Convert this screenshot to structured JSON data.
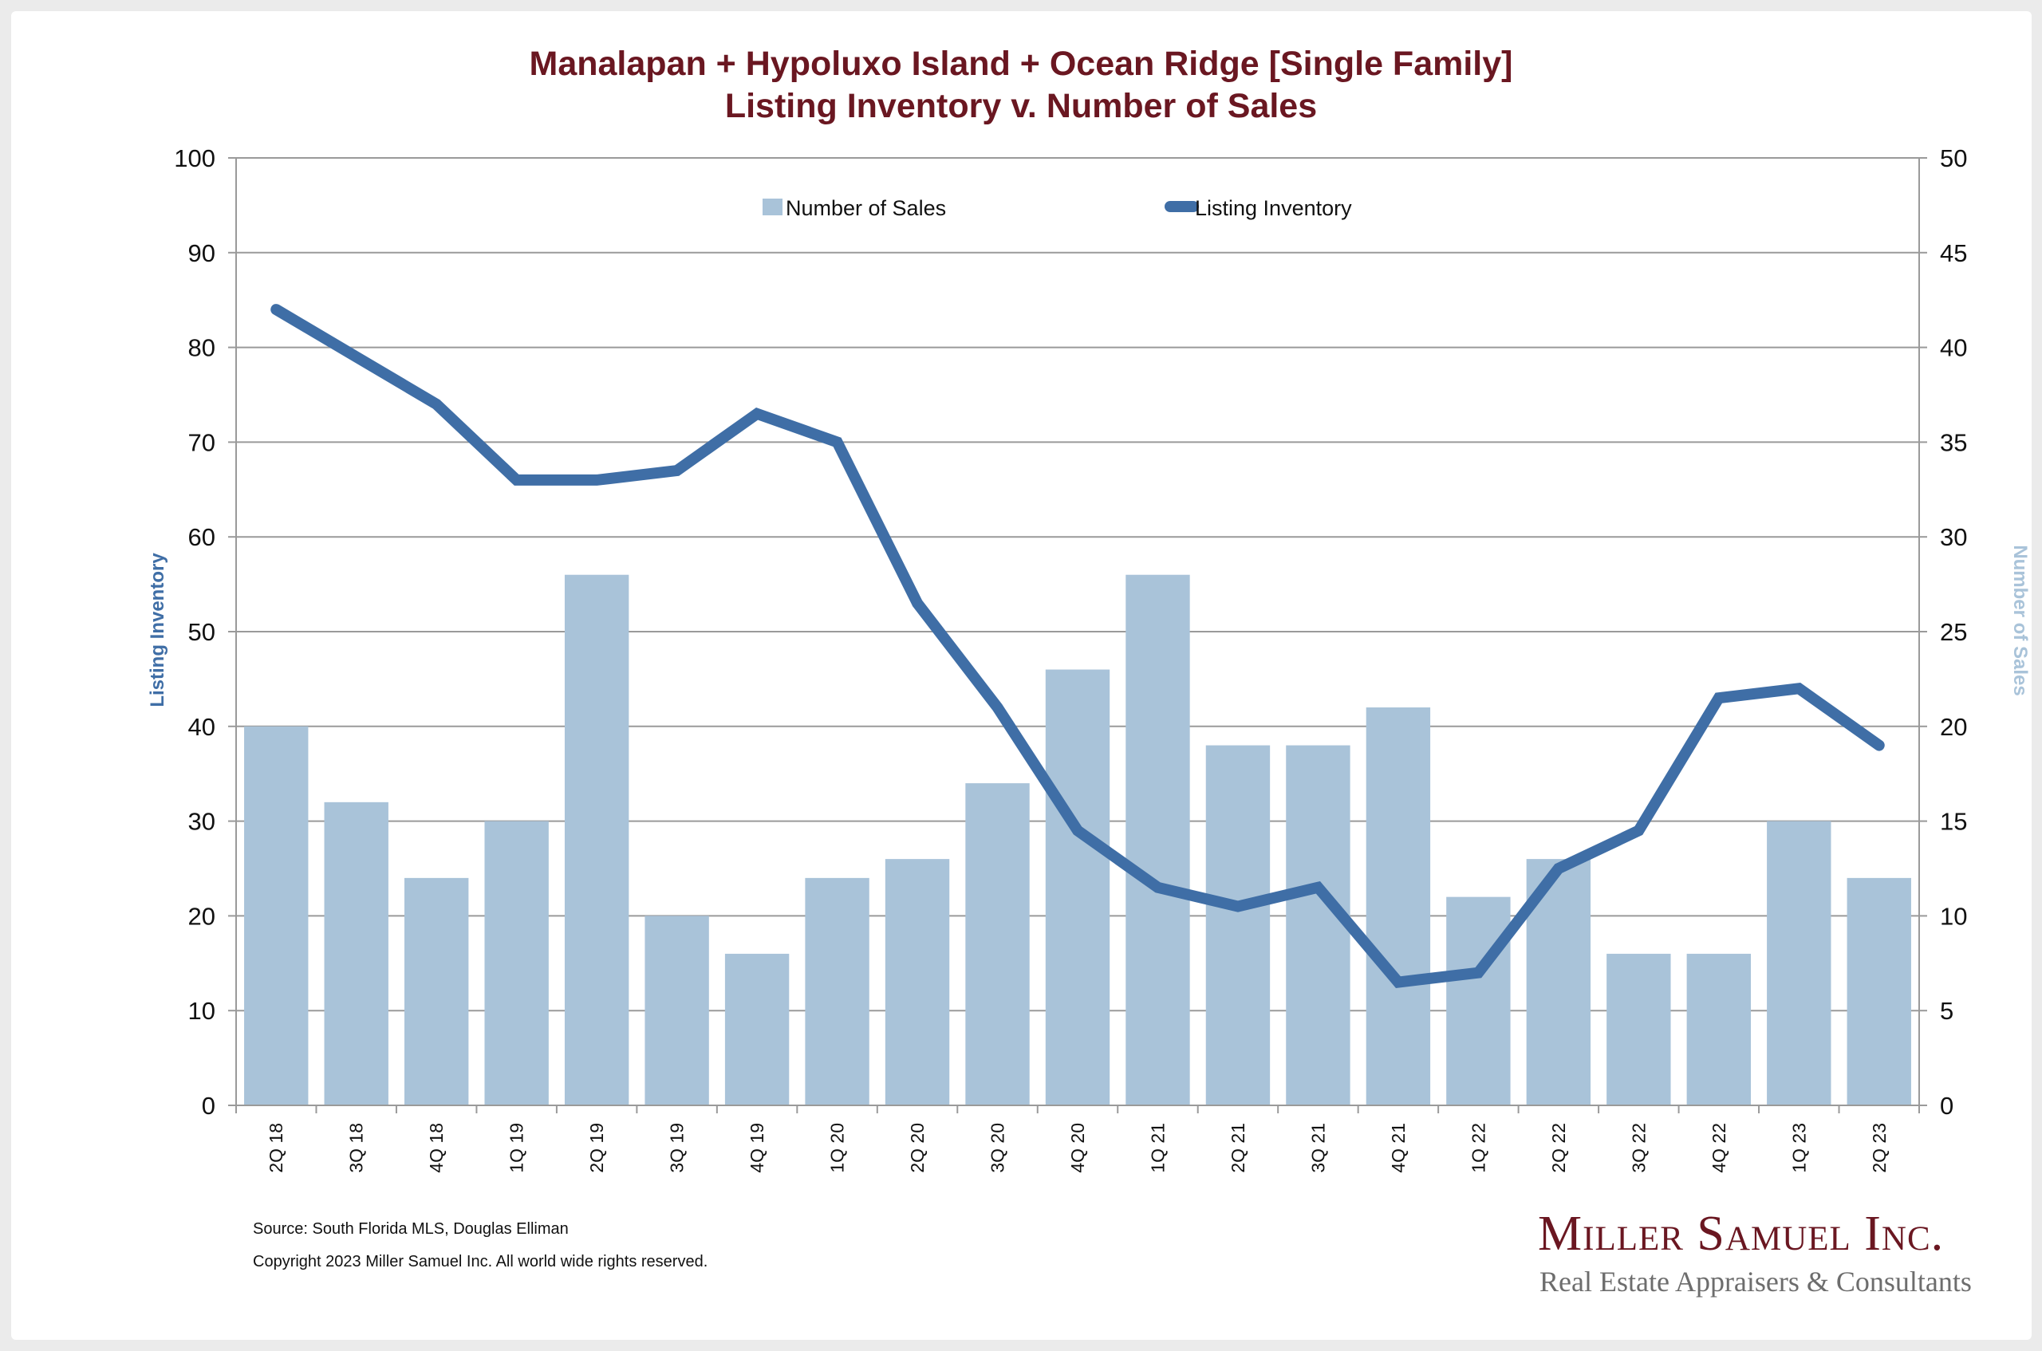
{
  "title": {
    "line1": "Manalapan + Hypoluxo Island + Ocean Ridge [Single Family]",
    "line2": "Listing Inventory v. Number of Sales"
  },
  "footer": {
    "source": "Source: South Florida MLS, Douglas Elliman",
    "copyright": "Copyright 2023 Miller Samuel Inc.  All world wide rights reserved."
  },
  "logo": {
    "name": "Miller Samuel Inc.",
    "tagline": "Real Estate Appraisers & Consultants"
  },
  "colors": {
    "title": "#6a1721",
    "bars": "#a9c3d9",
    "line": "#3f6ea6",
    "grid": "#9a9a9a"
  },
  "chart_data": {
    "type": "bar",
    "title": "Manalapan + Hypoluxo Island + Ocean Ridge [Single Family] Listing Inventory v. Number of Sales",
    "xlabel": "",
    "ylabel": "Listing Inventory",
    "y2label": "Number of Sales",
    "ylim": [
      0,
      100
    ],
    "y2lim": [
      0,
      50
    ],
    "yticks": [
      0,
      10,
      20,
      30,
      40,
      50,
      60,
      70,
      80,
      90,
      100
    ],
    "y2ticks": [
      0,
      5,
      10,
      15,
      20,
      25,
      30,
      35,
      40,
      45,
      50
    ],
    "grid": true,
    "legend_position": "top-center",
    "categories": [
      "2Q 18",
      "3Q 18",
      "4Q 18",
      "1Q 19",
      "2Q 19",
      "3Q 19",
      "4Q 19",
      "1Q 20",
      "2Q 20",
      "3Q 20",
      "4Q 20",
      "1Q 21",
      "2Q 21",
      "3Q 21",
      "4Q 21",
      "1Q 22",
      "2Q 22",
      "3Q 22",
      "4Q 22",
      "1Q 23",
      "2Q 23"
    ],
    "series": [
      {
        "name": "Number of Sales",
        "type": "bar",
        "axis": "right",
        "values": [
          20,
          16,
          12,
          15,
          28,
          10,
          8,
          12,
          13,
          17,
          23,
          28,
          19,
          19,
          21,
          11,
          13,
          8,
          8,
          15,
          12
        ]
      },
      {
        "name": "Listing Inventory",
        "type": "line",
        "axis": "left",
        "values": [
          84,
          79,
          74,
          66,
          66,
          67,
          73,
          70,
          53,
          42,
          29,
          23,
          21,
          23,
          13,
          14,
          25,
          29,
          43,
          44,
          38
        ]
      }
    ]
  }
}
